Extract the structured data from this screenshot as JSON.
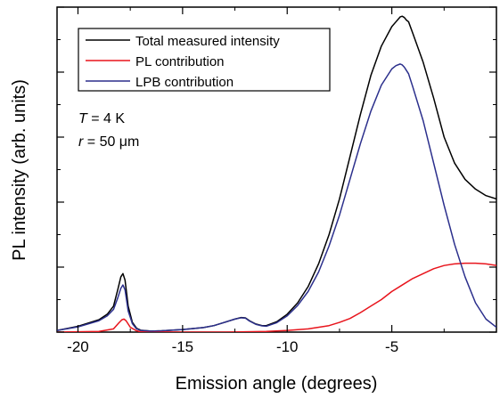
{
  "chart_data": {
    "type": "line",
    "xlabel": "Emission angle (degrees)",
    "ylabel": "PL intensity (arb. units)",
    "xlim": [
      -21,
      0
    ],
    "ylim": [
      0,
      1.0
    ],
    "x_ticks": [
      -20,
      -15,
      -10,
      -5
    ],
    "grid": false,
    "legend_position": "top-left",
    "legend": [
      {
        "label": "Total measured intensity",
        "color": "#000000"
      },
      {
        "label": "PL contribution",
        "color": "#e8141c"
      },
      {
        "label": "LPB contribution",
        "color": "#2b2f8c"
      }
    ],
    "annotations": {
      "line1": {
        "var": "T",
        "rest": " = 4 K"
      },
      "line2": {
        "var": "r",
        "rest": " = 50 μm"
      }
    },
    "series": [
      {
        "name": "Total measured intensity",
        "color": "#000000",
        "x": [
          -21,
          -20,
          -19,
          -18.6,
          -18.3,
          -18.1,
          -17.95,
          -17.85,
          -17.75,
          -17.6,
          -17.4,
          -17.2,
          -17,
          -16.5,
          -16,
          -15,
          -14,
          -13.5,
          -13,
          -12.5,
          -12.2,
          -12,
          -11.8,
          -11.5,
          -11.2,
          -11,
          -10.5,
          -10,
          -9.5,
          -9,
          -8.5,
          -8,
          -7.5,
          -7,
          -6.5,
          -6,
          -5.5,
          -5,
          -4.8,
          -4.6,
          -4.5,
          -4.4,
          -4.3,
          -4.2,
          -4,
          -3.5,
          -3,
          -2.5,
          -2,
          -1.5,
          -1,
          -0.5,
          0
        ],
        "y": [
          0.005,
          0.018,
          0.038,
          0.055,
          0.08,
          0.13,
          0.17,
          0.18,
          0.16,
          0.08,
          0.03,
          0.012,
          0.006,
          0.003,
          0.004,
          0.008,
          0.014,
          0.02,
          0.03,
          0.04,
          0.045,
          0.044,
          0.035,
          0.025,
          0.02,
          0.02,
          0.032,
          0.055,
          0.09,
          0.14,
          0.21,
          0.3,
          0.41,
          0.54,
          0.67,
          0.79,
          0.88,
          0.94,
          0.955,
          0.97,
          0.972,
          0.968,
          0.96,
          0.955,
          0.92,
          0.83,
          0.72,
          0.6,
          0.52,
          0.47,
          0.44,
          0.42,
          0.41
        ]
      },
      {
        "name": "PL contribution",
        "color": "#e8141c",
        "x": [
          -21,
          -19,
          -18.3,
          -18.05,
          -17.9,
          -17.8,
          -17.7,
          -17.5,
          -17.2,
          -17,
          -15,
          -13,
          -11,
          -10,
          -9,
          -8,
          -7.5,
          -7,
          -6.5,
          -6,
          -5.5,
          -5,
          -4.5,
          -4,
          -3.5,
          -3,
          -2.5,
          -2,
          -1.5,
          -1,
          -0.5,
          0
        ],
        "y": [
          0,
          0.002,
          0.01,
          0.028,
          0.038,
          0.04,
          0.035,
          0.015,
          0.004,
          0.001,
          0,
          0,
          0.002,
          0.005,
          0.01,
          0.02,
          0.03,
          0.042,
          0.06,
          0.08,
          0.1,
          0.125,
          0.145,
          0.165,
          0.18,
          0.195,
          0.205,
          0.21,
          0.212,
          0.212,
          0.21,
          0.205
        ]
      },
      {
        "name": "LPB contribution",
        "color": "#2b2f8c",
        "x": [
          -21,
          -20,
          -19,
          -18.6,
          -18.3,
          -18.1,
          -17.95,
          -17.85,
          -17.75,
          -17.6,
          -17.4,
          -17.2,
          -17,
          -16.5,
          -16,
          -15,
          -14,
          -13.5,
          -13,
          -12.5,
          -12.2,
          -12,
          -11.8,
          -11.5,
          -11.2,
          -11,
          -10.5,
          -10,
          -9.5,
          -9,
          -8.5,
          -8,
          -7.5,
          -7,
          -6.5,
          -6,
          -5.5,
          -5,
          -4.8,
          -4.6,
          -4.5,
          -4.4,
          -4.3,
          -4.2,
          -4,
          -3.5,
          -3,
          -2.5,
          -2,
          -1.5,
          -1,
          -0.5,
          0
        ],
        "y": [
          0.005,
          0.016,
          0.035,
          0.05,
          0.07,
          0.105,
          0.135,
          0.145,
          0.13,
          0.065,
          0.026,
          0.01,
          0.005,
          0.003,
          0.004,
          0.008,
          0.014,
          0.02,
          0.03,
          0.04,
          0.044,
          0.043,
          0.034,
          0.024,
          0.019,
          0.018,
          0.029,
          0.05,
          0.082,
          0.125,
          0.185,
          0.265,
          0.36,
          0.47,
          0.58,
          0.68,
          0.76,
          0.81,
          0.82,
          0.825,
          0.822,
          0.815,
          0.805,
          0.795,
          0.755,
          0.65,
          0.52,
          0.39,
          0.27,
          0.17,
          0.09,
          0.04,
          0.015
        ]
      }
    ]
  }
}
